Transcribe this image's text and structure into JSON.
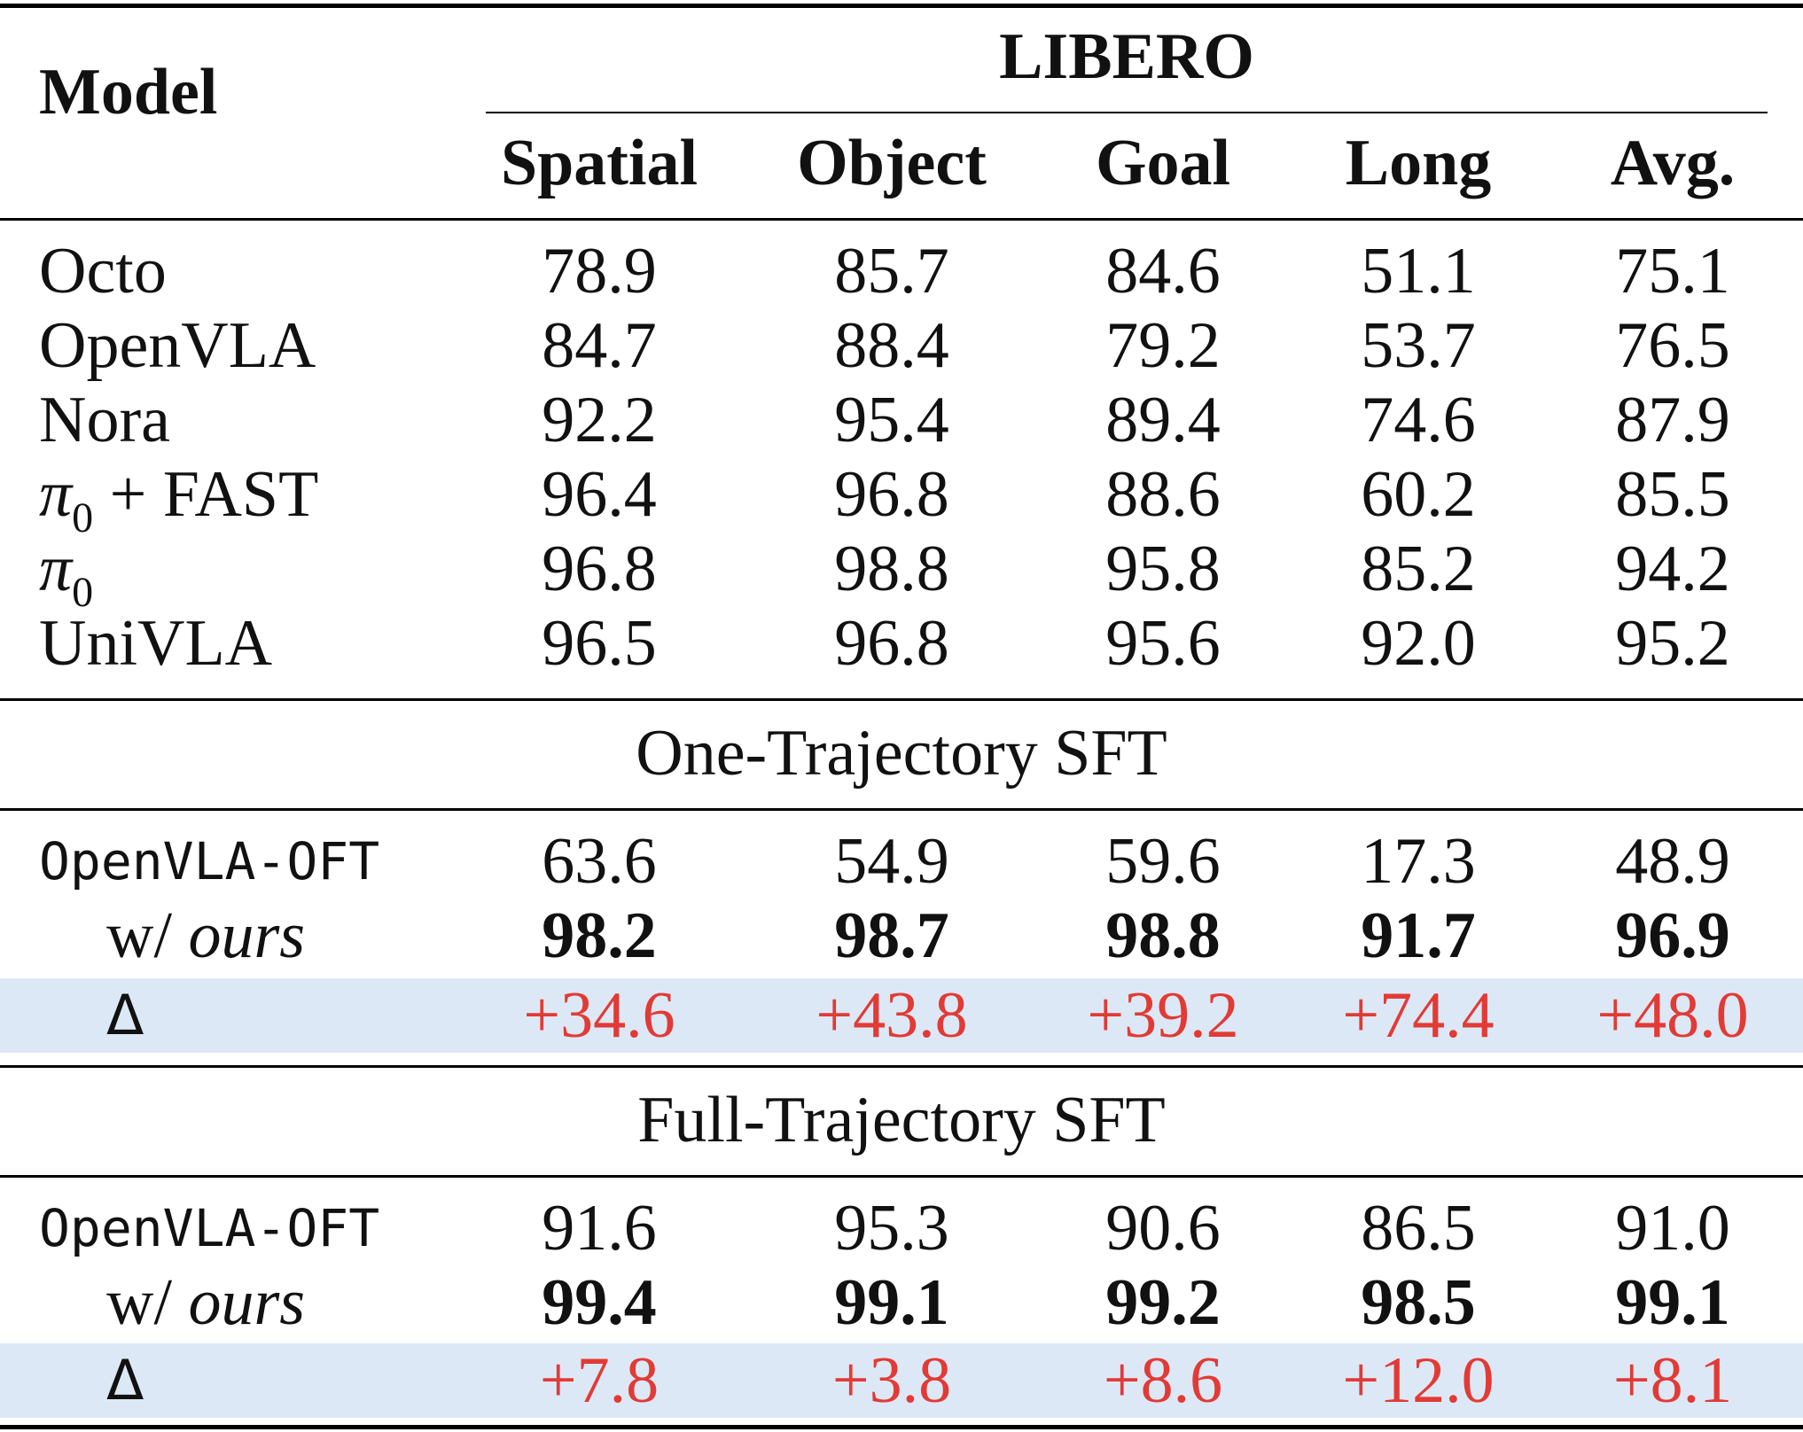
{
  "header": {
    "model_label": "Model",
    "group_label": "LIBERO",
    "columns": [
      "Spatial",
      "Object",
      "Goal",
      "Long",
      "Avg."
    ]
  },
  "baselines": [
    {
      "model": "Octo",
      "values": [
        "78.9",
        "85.7",
        "84.6",
        "51.1",
        "75.1"
      ]
    },
    {
      "model": "OpenVLA",
      "values": [
        "84.7",
        "88.4",
        "79.2",
        "53.7",
        "76.5"
      ]
    },
    {
      "model": "Nora",
      "values": [
        "92.2",
        "95.4",
        "89.4",
        "74.6",
        "87.9"
      ]
    },
    {
      "model_pi": "π",
      "model_sub": "0",
      "model_suffix": " + FAST",
      "values": [
        "96.4",
        "96.8",
        "88.6",
        "60.2",
        "85.5"
      ]
    },
    {
      "model_pi": "π",
      "model_sub": "0",
      "values": [
        "96.8",
        "98.8",
        "95.8",
        "85.2",
        "94.2"
      ]
    },
    {
      "model": "UniVLA",
      "values": [
        "96.5",
        "96.8",
        "95.6",
        "92.0",
        "95.2"
      ]
    }
  ],
  "one_trajectory": {
    "title": "One-Trajectory SFT",
    "base_model": "OpenVLA-OFT",
    "base_values": [
      "63.6",
      "54.9",
      "59.6",
      "17.3",
      "48.9"
    ],
    "ours_prefix": "w/ ",
    "ours_label": "ours",
    "ours_values": [
      "98.2",
      "98.7",
      "98.8",
      "91.7",
      "96.9"
    ],
    "delta_label": "Δ",
    "delta_values": [
      "+34.6",
      "+43.8",
      "+39.2",
      "+74.4",
      "+48.0"
    ]
  },
  "full_trajectory": {
    "title": "Full-Trajectory SFT",
    "base_model": "OpenVLA-OFT",
    "base_values": [
      "91.6",
      "95.3",
      "90.6",
      "86.5",
      "91.0"
    ],
    "ours_prefix": "w/ ",
    "ours_label": "ours",
    "ours_values": [
      "99.4",
      "99.1",
      "99.2",
      "98.5",
      "99.1"
    ],
    "delta_label": "Δ",
    "delta_values": [
      "+7.8",
      "+3.8",
      "+8.6",
      "+12.0",
      "+8.1"
    ]
  },
  "colors": {
    "delta_text": "#e23a35",
    "delta_band": "#dde8f6"
  }
}
